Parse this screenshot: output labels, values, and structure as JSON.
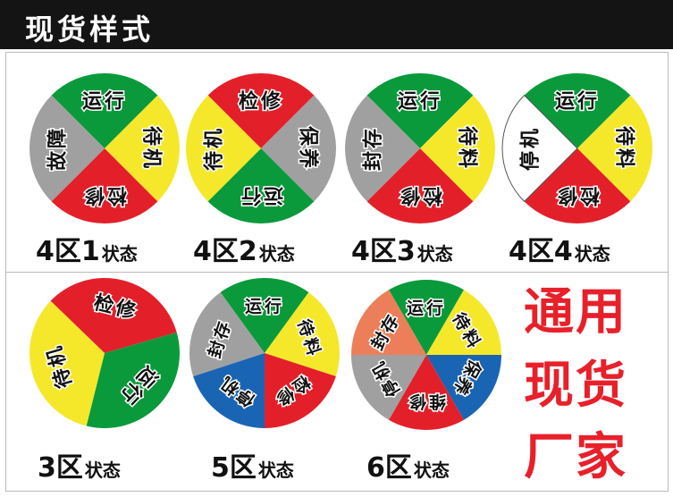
{
  "header": {
    "title": "现货样式"
  },
  "circles": [
    {
      "caption_main": "4区1",
      "caption_suffix": "状态",
      "segments": [
        {
          "label": "运行",
          "color": "#0a9a3c"
        },
        {
          "label": "待机",
          "color": "#f5e82a"
        },
        {
          "label": "检修",
          "color": "#e3202a"
        },
        {
          "label": "故障",
          "color": "#a0a0a0"
        }
      ]
    },
    {
      "caption_main": "4区2",
      "caption_suffix": "状态",
      "segments": [
        {
          "label": "检修",
          "color": "#e3202a"
        },
        {
          "label": "保养",
          "color": "#a0a0a0"
        },
        {
          "label": "运行",
          "color": "#0a9a3c"
        },
        {
          "label": "待机",
          "color": "#f5e82a"
        }
      ]
    },
    {
      "caption_main": "4区3",
      "caption_suffix": "状态",
      "segments": [
        {
          "label": "运行",
          "color": "#0a9a3c"
        },
        {
          "label": "待料",
          "color": "#f5e82a"
        },
        {
          "label": "检修",
          "color": "#e3202a"
        },
        {
          "label": "封存",
          "color": "#a0a0a0"
        }
      ]
    },
    {
      "caption_main": "4区4",
      "caption_suffix": "状态",
      "segments": [
        {
          "label": "运行",
          "color": "#0a9a3c"
        },
        {
          "label": "待料",
          "color": "#f5e82a"
        },
        {
          "label": "检修",
          "color": "#e3202a"
        },
        {
          "label": "停机",
          "color": "#ffffff"
        }
      ]
    },
    {
      "caption_main": "3区",
      "caption_suffix": "状态",
      "segments": [
        {
          "label": "检修",
          "color": "#e3202a"
        },
        {
          "label": "运行",
          "color": "#0a9a3c"
        },
        {
          "label": "待机",
          "color": "#f5e82a"
        }
      ]
    },
    {
      "caption_main": "5区",
      "caption_suffix": "状态",
      "segments": [
        {
          "label": "运行",
          "color": "#0a9a3c"
        },
        {
          "label": "待料",
          "color": "#f5e82a"
        },
        {
          "label": "检修",
          "color": "#e3202a"
        },
        {
          "label": "停机",
          "color": "#1a64b4"
        },
        {
          "label": "封存",
          "color": "#a0a0a0"
        }
      ]
    },
    {
      "caption_main": "6区",
      "caption_suffix": "状态",
      "segments": [
        {
          "label": "运行",
          "color": "#0a9a3c"
        },
        {
          "label": "待料",
          "color": "#f5e82a"
        },
        {
          "label": "保养",
          "color": "#1a64b4"
        },
        {
          "label": "维修",
          "color": "#e3202a"
        },
        {
          "label": "停机",
          "color": "#a0a0a0"
        },
        {
          "label": "封存",
          "color": "#ec7f5a"
        }
      ]
    }
  ],
  "slogan": [
    "通用",
    "现货",
    "厂家"
  ]
}
